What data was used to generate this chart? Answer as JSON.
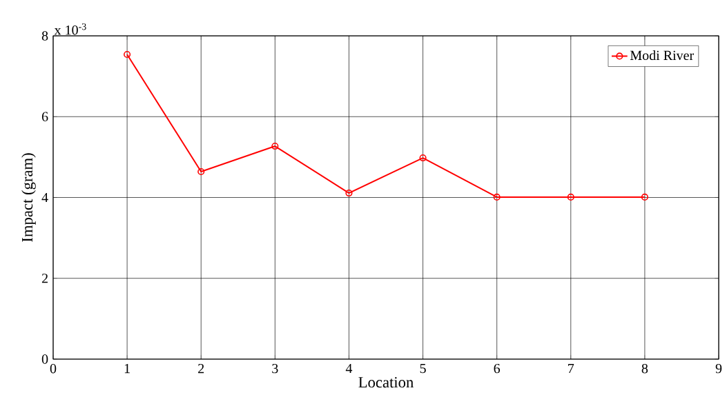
{
  "chart_data": {
    "type": "line",
    "xlabel": "Location",
    "ylabel": "Impact (gram)",
    "annotations": [
      "x 10$^{-3}$"
    ],
    "x": [
      1,
      2,
      3,
      4,
      5,
      6,
      7,
      8
    ],
    "series": [
      {
        "name": "Modi River",
        "color": "#ff0000",
        "values": [
          7.54,
          4.64,
          5.27,
          4.11,
          4.98,
          4.01,
          4.01,
          4.01
        ]
      }
    ],
    "xlim": [
      0,
      9
    ],
    "xticks": [
      0,
      1,
      2,
      3,
      4,
      5,
      6,
      7,
      8,
      9
    ],
    "ylim": [
      0,
      8
    ],
    "yticks": [
      0,
      2,
      4,
      6,
      8
    ],
    "grid": true,
    "legend": "top right",
    "marker": "circle",
    "line_style": "solid"
  }
}
